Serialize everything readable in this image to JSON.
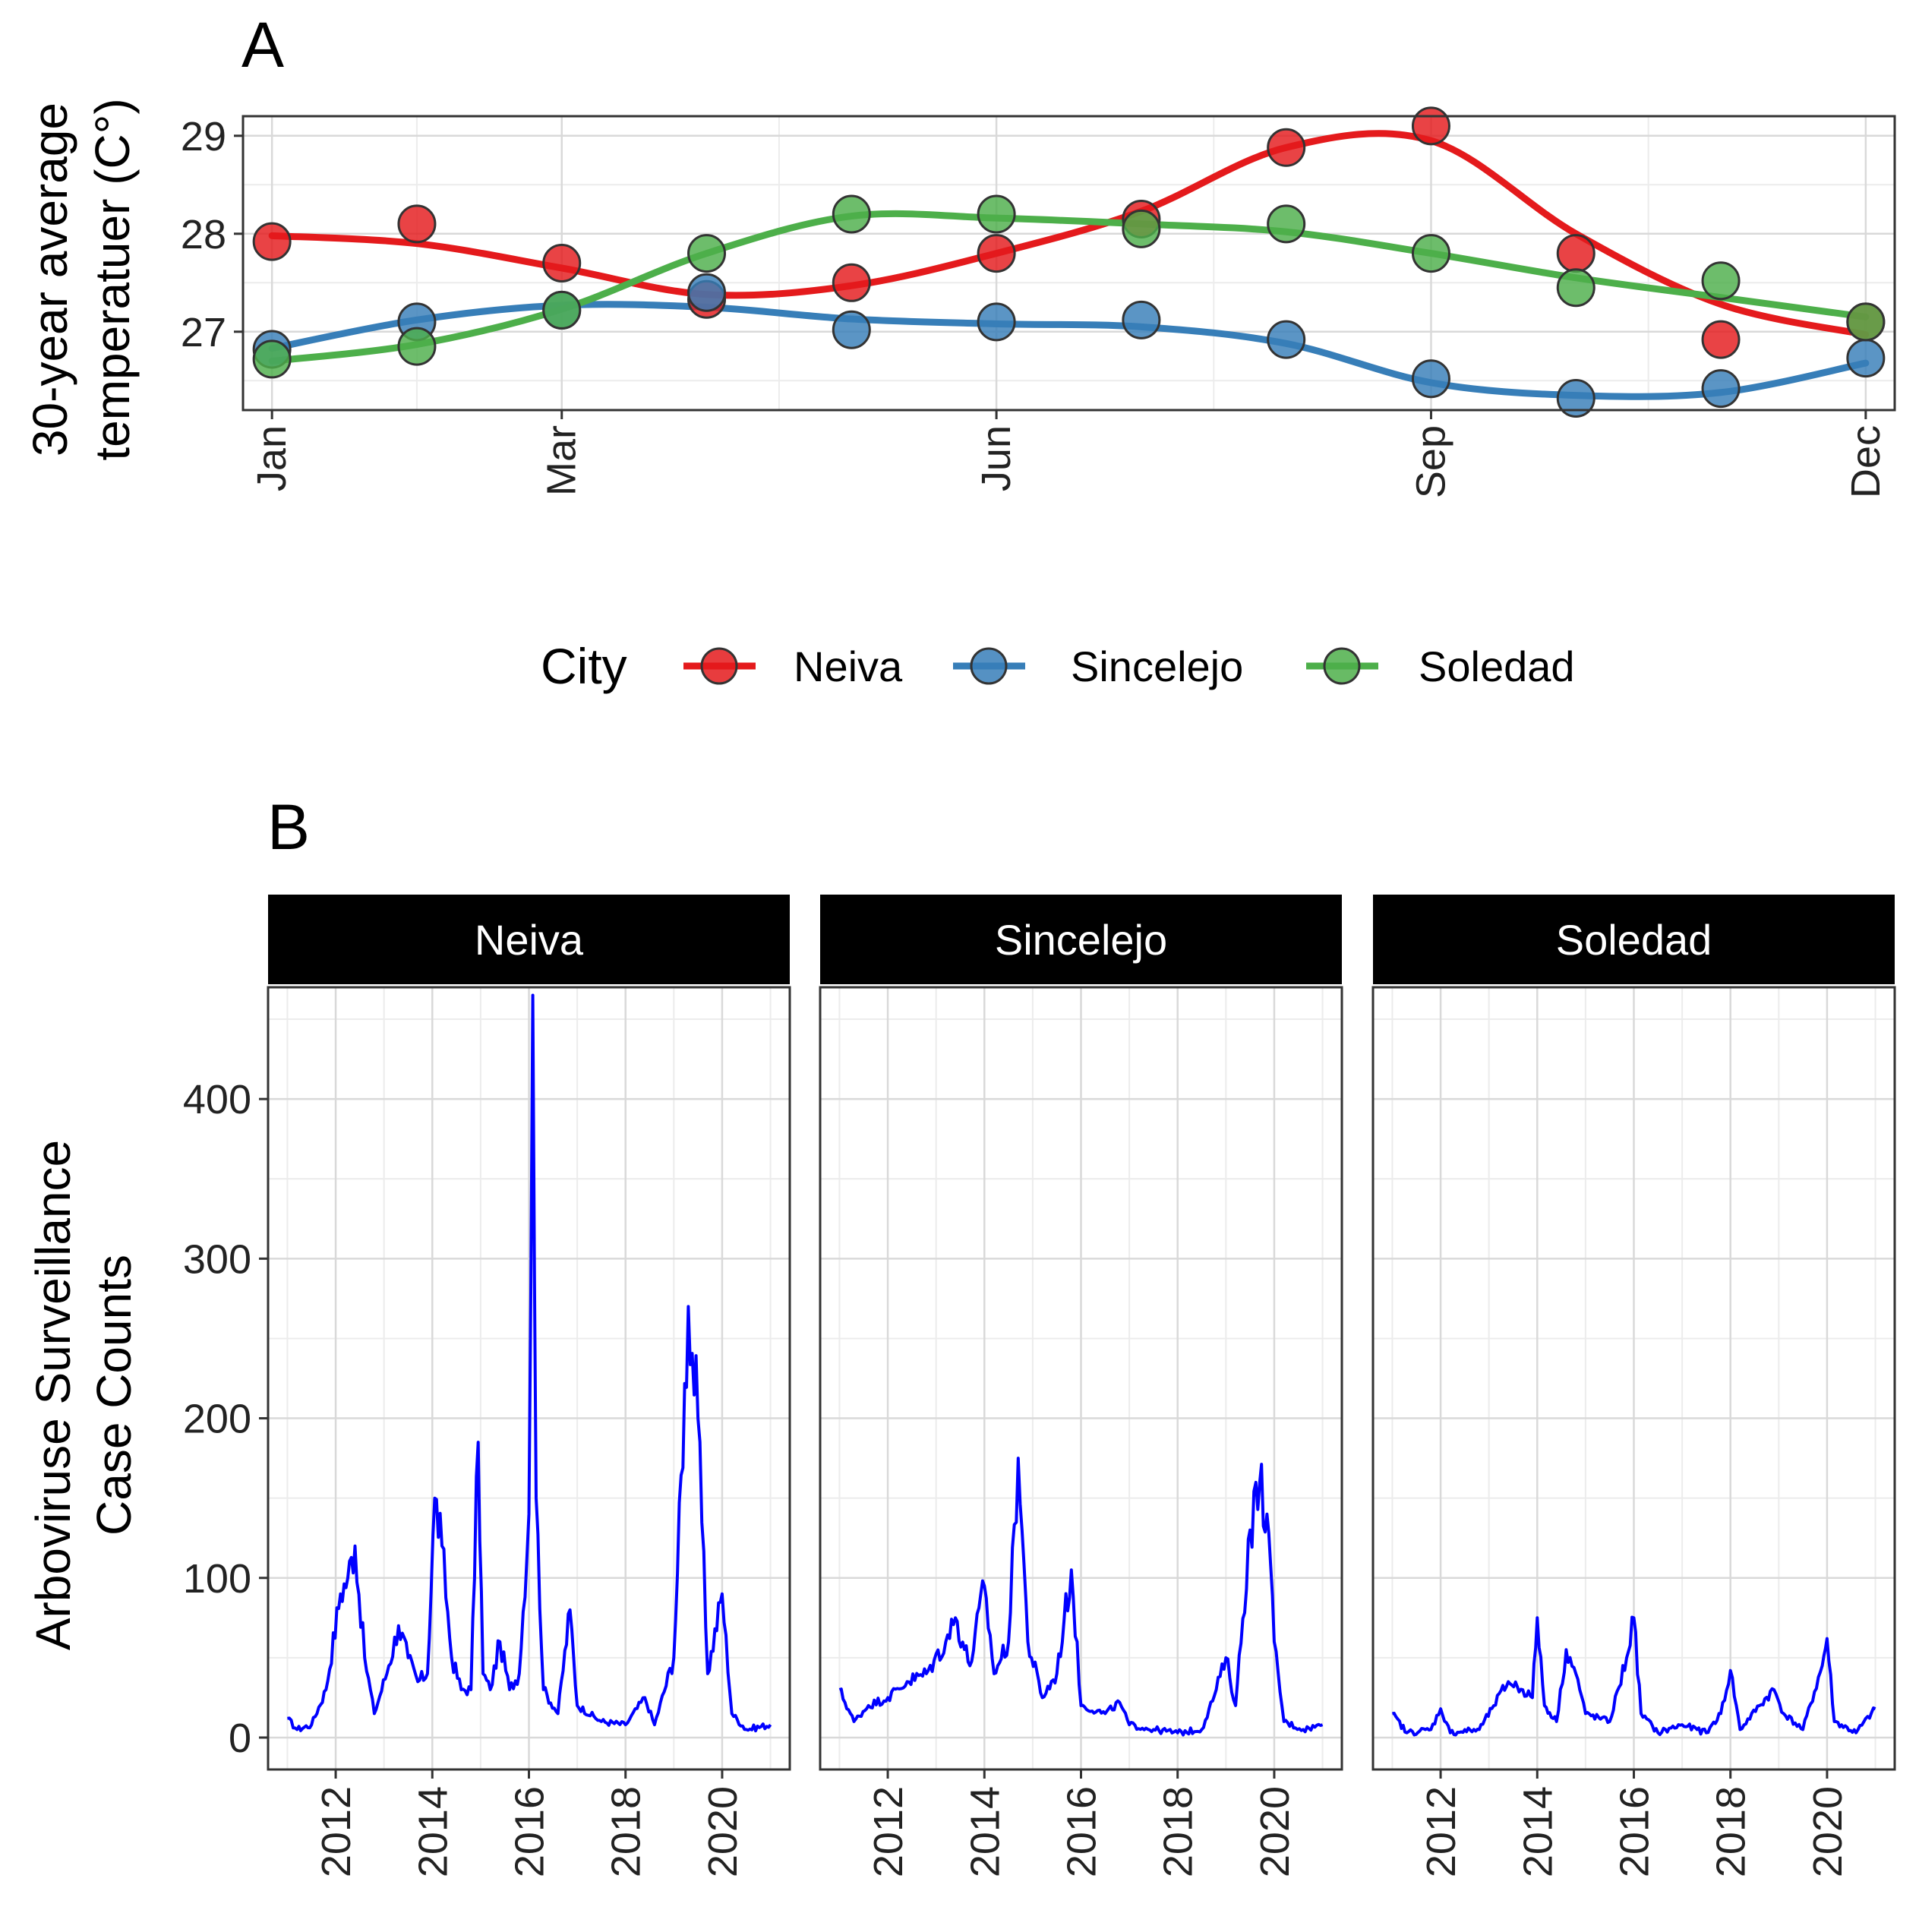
{
  "colors": {
    "Neiva": "#e41a1c",
    "Sincelejo": "#377eb8",
    "Soledad": "#4daf4a",
    "cases_line": "#0000ff",
    "strip_bg": "#000000",
    "strip_text": "#ffffff",
    "grid": "#d9d9d9",
    "frame": "#333333"
  },
  "chart_data": [
    {
      "panel_tag": "A",
      "type": "line",
      "ylabel_line1": "30-year average",
      "ylabel_line2": "temperatuer (C°)",
      "ylim": [
        26.2,
        29.2
      ],
      "yticks": [
        27,
        28,
        29
      ],
      "ytick_labels": [
        "27",
        "28",
        "29"
      ],
      "xlim": [
        0.8,
        12.2
      ],
      "xticks": [
        1,
        3,
        6,
        9,
        12
      ],
      "xtick_labels": [
        "Jan",
        "Mar",
        "Jun",
        "Sep",
        "Dec"
      ],
      "x": [
        1,
        2,
        3,
        4,
        5,
        6,
        7,
        8,
        9,
        10,
        11,
        12
      ],
      "legend": {
        "title": "City",
        "position": "bottom",
        "entries": [
          "Neiva",
          "Sincelejo",
          "Soledad"
        ]
      },
      "series": [
        {
          "name": "Neiva",
          "points": [
            27.92,
            28.1,
            27.7,
            27.33,
            27.5,
            27.8,
            28.15,
            28.88,
            29.1,
            27.8,
            26.92,
            27.1
          ],
          "smooth": [
            27.98,
            27.9,
            27.65,
            27.38,
            27.47,
            27.8,
            28.23,
            28.88,
            28.95,
            28.0,
            27.28,
            26.97
          ]
        },
        {
          "name": "Sincelejo",
          "points": [
            26.82,
            27.1,
            27.22,
            27.4,
            27.02,
            27.1,
            27.12,
            26.92,
            26.52,
            26.32,
            26.42,
            26.73
          ],
          "smooth": [
            26.83,
            27.12,
            27.27,
            27.25,
            27.13,
            27.08,
            27.05,
            26.88,
            26.48,
            26.35,
            26.38,
            26.68
          ]
        },
        {
          "name": "Soledad",
          "points": [
            26.72,
            26.85,
            27.22,
            27.8,
            28.2,
            28.2,
            28.05,
            28.1,
            27.8,
            27.45,
            27.52,
            27.1
          ],
          "smooth": [
            26.7,
            26.87,
            27.23,
            27.8,
            28.18,
            28.16,
            28.1,
            28.02,
            27.8,
            27.55,
            27.35,
            27.15
          ]
        }
      ]
    },
    {
      "panel_tag": "B",
      "type": "line",
      "ylabel_line1": "Arbovirusе Surveillance",
      "ylabel_line2": "Case Counts",
      "ylim": [
        -20,
        470
      ],
      "yticks": [
        0,
        100,
        200,
        300,
        400
      ],
      "ytick_labels": [
        "0",
        "100",
        "200",
        "300",
        "400"
      ],
      "xlim": [
        2010.6,
        2021.4
      ],
      "xticks": [
        2012,
        2014,
        2016,
        2018,
        2020
      ],
      "xtick_labels": [
        "2012",
        "2014",
        "2016",
        "2018",
        "2020"
      ],
      "facets": [
        {
          "label": "Neiva",
          "keypoints": [
            [
              2011.0,
              12
            ],
            [
              2011.2,
              5
            ],
            [
              2011.5,
              8
            ],
            [
              2011.8,
              30
            ],
            [
              2012.1,
              90
            ],
            [
              2012.25,
              100
            ],
            [
              2012.4,
              120
            ],
            [
              2012.6,
              50
            ],
            [
              2012.8,
              15
            ],
            [
              2013.1,
              45
            ],
            [
              2013.3,
              70
            ],
            [
              2013.5,
              50
            ],
            [
              2013.7,
              35
            ],
            [
              2013.9,
              40
            ],
            [
              2014.05,
              150
            ],
            [
              2014.2,
              120
            ],
            [
              2014.4,
              50
            ],
            [
              2014.6,
              30
            ],
            [
              2014.8,
              30
            ],
            [
              2014.95,
              185
            ],
            [
              2015.05,
              40
            ],
            [
              2015.2,
              30
            ],
            [
              2015.4,
              60
            ],
            [
              2015.6,
              30
            ],
            [
              2015.8,
              40
            ],
            [
              2016.0,
              140
            ],
            [
              2016.08,
              465
            ],
            [
              2016.15,
              150
            ],
            [
              2016.3,
              30
            ],
            [
              2016.6,
              15
            ],
            [
              2016.85,
              80
            ],
            [
              2017.0,
              20
            ],
            [
              2017.5,
              10
            ],
            [
              2018.0,
              8
            ],
            [
              2018.4,
              25
            ],
            [
              2018.6,
              8
            ],
            [
              2019.0,
              50
            ],
            [
              2019.3,
              270
            ],
            [
              2019.5,
              200
            ],
            [
              2019.7,
              40
            ],
            [
              2020.0,
              90
            ],
            [
              2020.2,
              15
            ],
            [
              2020.5,
              5
            ],
            [
              2021.0,
              8
            ]
          ]
        },
        {
          "label": "Sincelejo",
          "keypoints": [
            [
              2011.0,
              30
            ],
            [
              2011.3,
              10
            ],
            [
              2011.6,
              20
            ],
            [
              2012.0,
              25
            ],
            [
              2012.4,
              35
            ],
            [
              2012.8,
              40
            ],
            [
              2013.2,
              60
            ],
            [
              2013.4,
              75
            ],
            [
              2013.7,
              45
            ],
            [
              2014.0,
              95
            ],
            [
              2014.2,
              40
            ],
            [
              2014.5,
              60
            ],
            [
              2014.7,
              175
            ],
            [
              2014.9,
              60
            ],
            [
              2015.2,
              25
            ],
            [
              2015.5,
              40
            ],
            [
              2015.8,
              105
            ],
            [
              2016.0,
              20
            ],
            [
              2016.5,
              15
            ],
            [
              2016.8,
              22
            ],
            [
              2017.0,
              8
            ],
            [
              2017.5,
              5
            ],
            [
              2018.0,
              3
            ],
            [
              2018.5,
              5
            ],
            [
              2018.8,
              30
            ],
            [
              2019.0,
              50
            ],
            [
              2019.2,
              20
            ],
            [
              2019.5,
              130
            ],
            [
              2019.7,
              160
            ],
            [
              2019.85,
              140
            ],
            [
              2020.0,
              60
            ],
            [
              2020.2,
              10
            ],
            [
              2020.6,
              5
            ],
            [
              2021.0,
              8
            ]
          ]
        },
        {
          "label": "Soledad",
          "keypoints": [
            [
              2011.0,
              15
            ],
            [
              2011.3,
              3
            ],
            [
              2011.8,
              5
            ],
            [
              2012.0,
              18
            ],
            [
              2012.2,
              3
            ],
            [
              2012.8,
              5
            ],
            [
              2013.1,
              20
            ],
            [
              2013.4,
              35
            ],
            [
              2013.7,
              30
            ],
            [
              2013.9,
              25
            ],
            [
              2014.0,
              75
            ],
            [
              2014.15,
              20
            ],
            [
              2014.4,
              10
            ],
            [
              2014.6,
              55
            ],
            [
              2014.8,
              40
            ],
            [
              2015.0,
              15
            ],
            [
              2015.5,
              10
            ],
            [
              2015.85,
              50
            ],
            [
              2016.0,
              75
            ],
            [
              2016.15,
              15
            ],
            [
              2016.5,
              3
            ],
            [
              2017.0,
              8
            ],
            [
              2017.5,
              3
            ],
            [
              2017.8,
              15
            ],
            [
              2018.0,
              42
            ],
            [
              2018.2,
              5
            ],
            [
              2018.6,
              20
            ],
            [
              2018.9,
              30
            ],
            [
              2019.1,
              15
            ],
            [
              2019.5,
              5
            ],
            [
              2019.9,
              45
            ],
            [
              2020.0,
              62
            ],
            [
              2020.15,
              10
            ],
            [
              2020.6,
              3
            ],
            [
              2021.0,
              18
            ]
          ]
        }
      ]
    }
  ]
}
